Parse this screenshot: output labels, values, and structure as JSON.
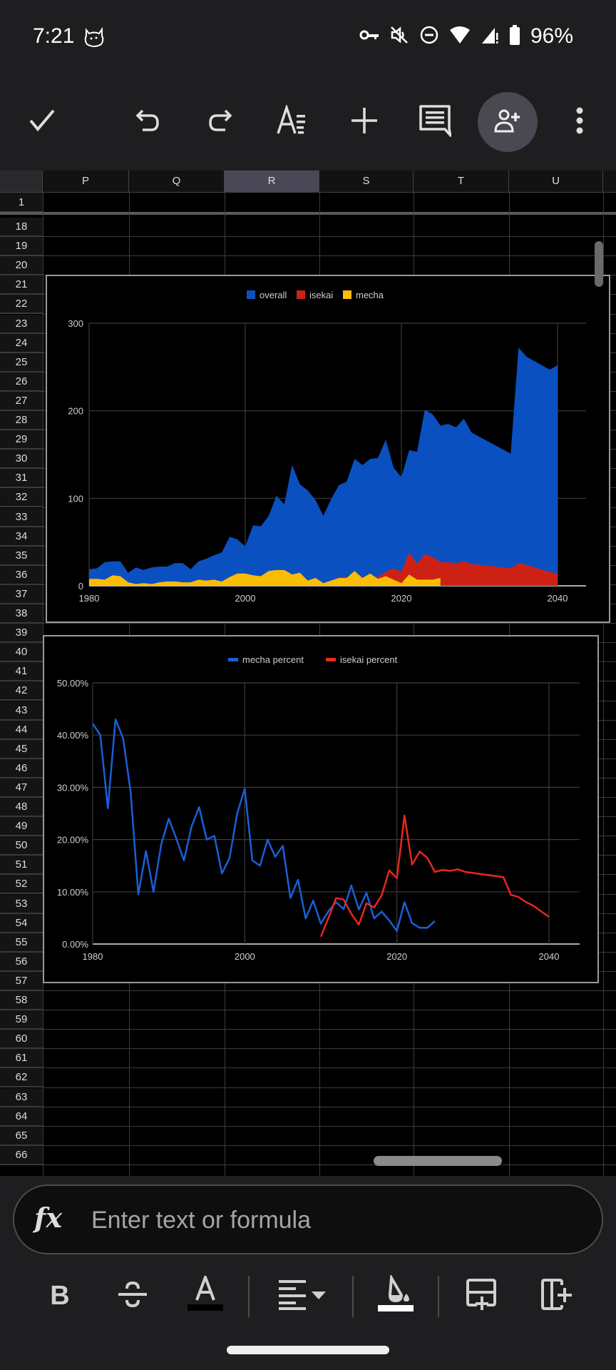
{
  "status_bar": {
    "time": "7:21",
    "battery_percent": "96%",
    "icons": [
      "cat-notification-icon",
      "vpn-key-icon",
      "mute-icon",
      "do-not-disturb-icon",
      "wifi-icon",
      "signal-icon",
      "battery-icon"
    ]
  },
  "toolbar": {
    "icons": [
      "check-icon",
      "undo-icon",
      "redo-icon",
      "text-format-icon",
      "insert-icon",
      "comment-icon",
      "share-icon",
      "more-icon"
    ]
  },
  "sheet": {
    "columns": [
      "P",
      "Q",
      "R",
      "S",
      "T",
      "U"
    ],
    "selected_column": "R",
    "frozen_row": "1",
    "rows": [
      "18",
      "19",
      "20",
      "21",
      "22",
      "23",
      "24",
      "25",
      "26",
      "27",
      "28",
      "29",
      "30",
      "31",
      "32",
      "33",
      "34",
      "35",
      "36",
      "37",
      "38",
      "39",
      "40",
      "41",
      "42",
      "43",
      "44",
      "45",
      "46",
      "47",
      "48",
      "49",
      "50",
      "51",
      "52",
      "53",
      "54",
      "55",
      "56",
      "57",
      "58",
      "59",
      "60",
      "61",
      "62",
      "63",
      "64",
      "65",
      "66"
    ]
  },
  "formula_bar": {
    "placeholder": "Enter text or formula",
    "value": "",
    "fx_label": "fx"
  },
  "format_bar": {
    "bold_label": "B",
    "icons": [
      "bold-icon",
      "strikethrough-icon",
      "text-color-icon",
      "align-icon",
      "fill-color-icon",
      "insert-row-icon",
      "insert-column-icon"
    ]
  },
  "chart_data": [
    {
      "type": "area",
      "title": "",
      "xlabel": "",
      "ylabel": "",
      "xlim": [
        1980,
        2044
      ],
      "ylim": [
        0,
        300
      ],
      "x_ticks": [
        "1980",
        "2000",
        "2020",
        "2040"
      ],
      "y_ticks": [
        "0",
        "100",
        "200",
        "300"
      ],
      "grid": true,
      "legend": "top",
      "series": [
        {
          "name": "overall",
          "color": "#0b50c1",
          "x": [
            1980,
            1981,
            1982,
            1983,
            1984,
            1985,
            1986,
            1987,
            1988,
            1989,
            1990,
            1991,
            1992,
            1993,
            1994,
            1995,
            1996,
            1997,
            1998,
            1999,
            2000,
            2001,
            2002,
            2003,
            2004,
            2005,
            2006,
            2007,
            2008,
            2009,
            2010,
            2011,
            2012,
            2013,
            2014,
            2015,
            2016,
            2017,
            2018,
            2019,
            2020,
            2021,
            2022,
            2023,
            2024,
            2025,
            2026,
            2027,
            2028,
            2029,
            2034,
            2035,
            2036,
            2037,
            2039,
            2040
          ],
          "values": [
            19,
            20,
            27,
            28,
            28,
            15,
            21,
            18,
            21,
            22,
            22,
            26,
            26,
            19,
            28,
            31,
            35,
            38,
            56,
            53,
            45,
            69,
            68,
            80,
            103,
            93,
            138,
            116,
            109,
            98,
            80,
            99,
            115,
            119,
            145,
            138,
            145,
            146,
            167,
            135,
            124,
            155,
            153,
            201,
            196,
            183,
            185,
            181,
            191,
            175,
            151,
            272,
            262,
            257,
            247,
            252
          ]
        },
        {
          "name": "isekai",
          "color": "#cd2213",
          "x": [
            2010,
            2011,
            2012,
            2013,
            2014,
            2015,
            2016,
            2017,
            2018,
            2019,
            2020,
            2021,
            2022,
            2023,
            2024,
            2025,
            2026,
            2027,
            2028,
            2029,
            2034,
            2035,
            2036,
            2037,
            2039,
            2040
          ],
          "values": [
            1,
            5,
            10,
            10,
            8,
            5,
            11,
            10,
            16,
            20,
            16,
            38,
            25,
            36,
            33,
            27,
            27,
            26,
            28,
            25,
            20,
            26,
            24,
            21,
            16,
            14
          ]
        },
        {
          "name": "mecha",
          "color": "#fbbc04",
          "x": [
            1980,
            1981,
            1982,
            1983,
            1984,
            1985,
            1986,
            1987,
            1988,
            1989,
            1990,
            1991,
            1992,
            1993,
            1994,
            1995,
            1996,
            1997,
            1998,
            1999,
            2000,
            2001,
            2002,
            2003,
            2004,
            2005,
            2006,
            2007,
            2008,
            2009,
            2010,
            2011,
            2012,
            2013,
            2014,
            2015,
            2016,
            2017,
            2018,
            2019,
            2020,
            2021,
            2022,
            2023,
            2024,
            2025
          ],
          "values": [
            8,
            8,
            7,
            12,
            11,
            4,
            2,
            3,
            2,
            4,
            5,
            5,
            4,
            4,
            7,
            6,
            7,
            5,
            10,
            14,
            14,
            12,
            11,
            17,
            18,
            18,
            13,
            15,
            6,
            9,
            3,
            6,
            9,
            9,
            17,
            9,
            14,
            8,
            11,
            7,
            3,
            13,
            7,
            7,
            7,
            9
          ]
        }
      ]
    },
    {
      "type": "line",
      "title": "",
      "xlabel": "",
      "ylabel": "",
      "xlim": [
        1980,
        2044
      ],
      "ylim": [
        0,
        50
      ],
      "x_ticks": [
        "1980",
        "2000",
        "2020",
        "2040"
      ],
      "y_ticks": [
        "0.00%",
        "10.00%",
        "20.00%",
        "30.00%",
        "40.00%",
        "50.00%"
      ],
      "grid": true,
      "legend": "top",
      "series": [
        {
          "name": "mecha percent",
          "color": "#1a5fd6",
          "x": [
            1980,
            1981,
            1982,
            1983,
            1984,
            1985,
            1986,
            1987,
            1988,
            1989,
            1990,
            1991,
            1992,
            1993,
            1994,
            1995,
            1996,
            1997,
            1998,
            1999,
            2000,
            2001,
            2002,
            2003,
            2004,
            2005,
            2006,
            2007,
            2008,
            2009,
            2010,
            2011,
            2012,
            2013,
            2014,
            2015,
            2016,
            2017,
            2018,
            2019,
            2020,
            2021,
            2022,
            2023,
            2024,
            2025
          ],
          "values": [
            42.2,
            40,
            26,
            43,
            39.4,
            29,
            9.5,
            17.8,
            10,
            19,
            24,
            20.2,
            16,
            22.5,
            26.2,
            20,
            20.7,
            13.5,
            16.5,
            25,
            29.7,
            16,
            15,
            20,
            16.7,
            18.8,
            8.8,
            12.3,
            4.9,
            8.3,
            3.9,
            6.3,
            8,
            6.7,
            11.2,
            6.6,
            9.8,
            4.9,
            6.2,
            4.5,
            2.5,
            8,
            4,
            3.1,
            3.1,
            4.4
          ]
        },
        {
          "name": "isekai percent",
          "color": "#e8271e",
          "x": [
            2010,
            2011,
            2012,
            2013,
            2014,
            2015,
            2016,
            2017,
            2018,
            2019,
            2020,
            2021,
            2022,
            2023,
            2024,
            2025,
            2026,
            2027,
            2028,
            2029,
            2034,
            2035,
            2036,
            2037,
            2038,
            2039,
            2040
          ],
          "values": [
            1.4,
            5,
            8.8,
            8.5,
            5.8,
            3.7,
            7.8,
            7,
            9.3,
            14.1,
            12.6,
            24.6,
            15.2,
            17.7,
            16.5,
            13.8,
            14.2,
            14,
            14.3,
            13.8,
            12.8,
            9.4,
            9,
            8,
            7.3,
            6.2,
            5.2
          ]
        }
      ]
    }
  ]
}
